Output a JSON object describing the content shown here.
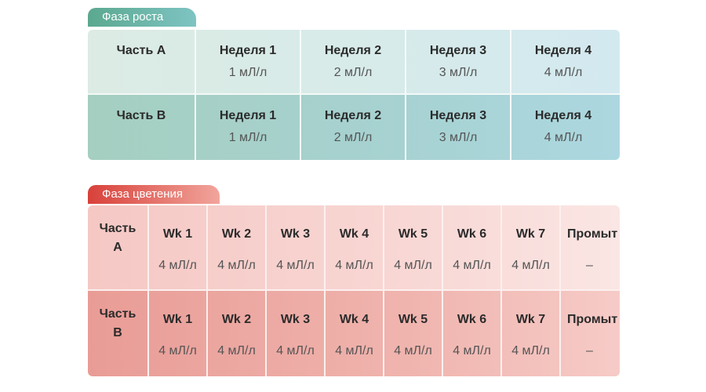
{
  "growth": {
    "tab_label": "Фаза роста",
    "rows": [
      {
        "part": "Часть A",
        "cells": [
          {
            "week": "Неделя 1",
            "dose": "1 мЛ/л"
          },
          {
            "week": "Неделя 2",
            "dose": "2 мЛ/л"
          },
          {
            "week": "Неделя 3",
            "dose": "3 мЛ/л"
          },
          {
            "week": "Неделя 4",
            "dose": "4 мЛ/л"
          }
        ]
      },
      {
        "part": "Часть B",
        "cells": [
          {
            "week": "Неделя 1",
            "dose": "1 мЛ/л"
          },
          {
            "week": "Неделя 2",
            "dose": "2 мЛ/л"
          },
          {
            "week": "Неделя 3",
            "dose": "3 мЛ/л"
          },
          {
            "week": "Неделя 4",
            "dose": "4 мЛ/л"
          }
        ]
      }
    ]
  },
  "bloom": {
    "tab_label": "Фаза цветения",
    "rows": [
      {
        "part": "Часть A",
        "cells": [
          {
            "week": "Wk 1",
            "dose": "4 мЛ/л"
          },
          {
            "week": "Wk 2",
            "dose": "4 мЛ/л"
          },
          {
            "week": "Wk 3",
            "dose": "4 мЛ/л"
          },
          {
            "week": "Wk 4",
            "dose": "4 мЛ/л"
          },
          {
            "week": "Wk 5",
            "dose": "4 мЛ/л"
          },
          {
            "week": "Wk 6",
            "dose": "4 мЛ/л"
          },
          {
            "week": "Wk 7",
            "dose": "4 мЛ/л"
          }
        ],
        "flush": {
          "label": "Промыт",
          "dose": "–"
        }
      },
      {
        "part": "Часть B",
        "cells": [
          {
            "week": "Wk 1",
            "dose": "4 мЛ/л"
          },
          {
            "week": "Wk 2",
            "dose": "4 мЛ/л"
          },
          {
            "week": "Wk 3",
            "dose": "4 мЛ/л"
          },
          {
            "week": "Wk 4",
            "dose": "4 мЛ/л"
          },
          {
            "week": "Wk 5",
            "dose": "4 мЛ/л"
          },
          {
            "week": "Wk 6",
            "dose": "4 мЛ/л"
          },
          {
            "week": "Wk 7",
            "dose": "4 мЛ/л"
          }
        ],
        "flush": {
          "label": "Промыт",
          "dose": "–"
        }
      }
    ]
  },
  "colors": {
    "growth_tab": "#5ba88f",
    "bloom_tab": "#d8413a"
  }
}
